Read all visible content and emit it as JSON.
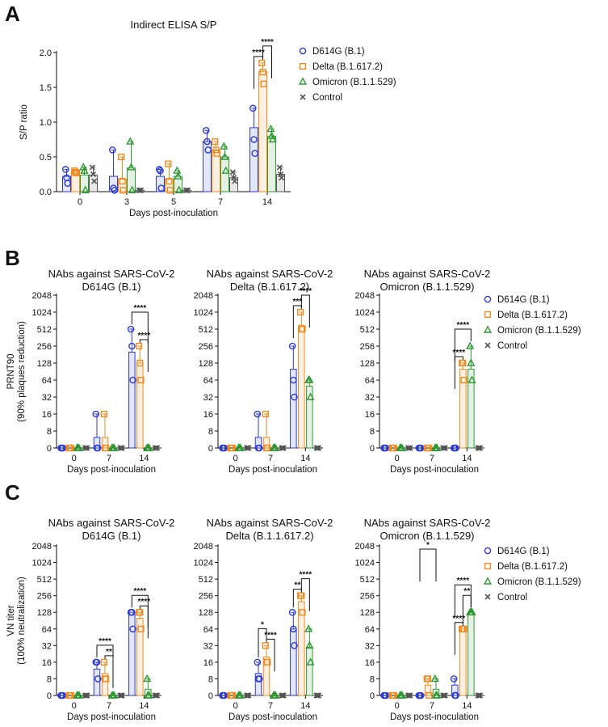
{
  "colors": {
    "D614G": "#2b3bd6",
    "Delta": "#f28a1c",
    "Omicron": "#2f9a33",
    "Control": "#555555",
    "axis": "#111111"
  },
  "series": [
    {
      "name": "D614G (B.1)",
      "key": "D614G",
      "marker": "circle"
    },
    {
      "name": "Delta (B.1.617.2)",
      "key": "Delta",
      "marker": "square"
    },
    {
      "name": "Omicron (B.1.1.529)",
      "key": "Omicron",
      "marker": "triangle"
    },
    {
      "name": "Control",
      "key": "Control",
      "marker": "cross"
    }
  ],
  "chart_data": [
    {
      "id": "A",
      "panel": "A",
      "type": "bar",
      "scale": "linear",
      "title": "Indirect ELISA S/P",
      "xlabel": "Days post-inoculation",
      "ylabel": "S/P ratio",
      "categories": [
        "0",
        "3",
        "5",
        "7",
        "14"
      ],
      "ylim": [
        0,
        2.0
      ],
      "yticks": [
        "0.0",
        "0.5",
        "1.0",
        "1.5",
        "2.0"
      ],
      "legend": [
        "D614G (B.1)",
        "Delta (B.1.617.2)",
        "Omicron (B.1.1.529)",
        "Control"
      ],
      "series": [
        {
          "name": "D614G (B.1)",
          "values": [
            0.22,
            0.22,
            0.22,
            0.72,
            0.92
          ],
          "points": [
            [
              0.32,
              0.2,
              0.12
            ],
            [
              0.6,
              0.05,
              0.02
            ],
            [
              0.32,
              0.3,
              0.05
            ],
            [
              0.88,
              0.72,
              0.6
            ],
            [
              1.2,
              0.75,
              0.55
            ]
          ]
        },
        {
          "name": "Delta (B.1.617.2)",
          "values": [
            0.29,
            0.18,
            0.18,
            0.6,
            1.73
          ],
          "points": [
            [
              0.3,
              0.28,
              0.27
            ],
            [
              0.5,
              0.15,
              0.02
            ],
            [
              0.4,
              0.15,
              0.02
            ],
            [
              0.72,
              0.6,
              0.55
            ],
            [
              1.85,
              1.72,
              1.55
            ]
          ]
        },
        {
          "name": "Omicron (B.1.1.529)",
          "values": [
            0.24,
            0.34,
            0.22,
            0.5,
            0.8
          ],
          "points": [
            [
              0.35,
              0.3,
              0.02
            ],
            [
              0.72,
              0.35,
              0.02
            ],
            [
              0.3,
              0.22,
              0.02
            ],
            [
              0.65,
              0.5,
              0.3
            ],
            [
              0.9,
              0.8,
              0.75
            ]
          ]
        },
        {
          "name": "Control",
          "values": [
            0.24,
            0.02,
            0.02,
            0.2,
            0.25
          ],
          "points": [
            [
              0.35,
              0.25,
              0.15
            ],
            [
              0.02,
              0.02,
              0.02
            ],
            [
              0.02,
              0.02,
              0.02
            ],
            [
              0.28,
              0.2,
              0.15
            ],
            [
              0.35,
              0.25,
              0.2
            ]
          ]
        }
      ],
      "brackets": [
        {
          "cat": 4,
          "from": 0,
          "to": 1,
          "label": "****",
          "level": 0
        },
        {
          "cat": 4,
          "from": 1,
          "to": 2,
          "label": "****",
          "level": 1
        }
      ]
    },
    {
      "id": "B1",
      "panel": "B",
      "type": "bar",
      "scale": "log2",
      "title": [
        "NAbs against SARS-CoV-2",
        "D614G (B.1)"
      ],
      "xlabel": "Days post-inoculation",
      "ylabel": [
        "PRNT90",
        "(90% plaques reduction)"
      ],
      "categories": [
        "0",
        "7",
        "14"
      ],
      "yticks": [
        "0",
        "8",
        "16",
        "32",
        "64",
        "128",
        "256",
        "512",
        "1024",
        "2048"
      ],
      "series": [
        {
          "name": "D614G (B.1)",
          "values": [
            0,
            5,
            200
          ],
          "points": [
            [
              0,
              0,
              0
            ],
            [
              16,
              0,
              0
            ],
            [
              512,
              256,
              64
            ]
          ]
        },
        {
          "name": "Delta (B.1.617.2)",
          "values": [
            0,
            5,
            128
          ],
          "points": [
            [
              0,
              0,
              0
            ],
            [
              16,
              0,
              0
            ],
            [
              256,
              128,
              64
            ]
          ]
        },
        {
          "name": "Omicron (B.1.1.529)",
          "values": [
            0,
            0,
            0
          ],
          "points": [
            [
              0,
              0,
              0
            ],
            [
              0,
              0,
              0
            ],
            [
              0,
              0,
              0
            ]
          ]
        },
        {
          "name": "Control",
          "values": [
            0,
            0,
            0
          ],
          "points": [
            [
              0,
              0,
              0
            ],
            [
              0,
              0,
              0
            ],
            [
              0,
              0,
              0
            ]
          ]
        }
      ],
      "brackets": [
        {
          "cat": 2,
          "from": 0,
          "to": 2,
          "label": "****",
          "level": 1
        },
        {
          "cat": 2,
          "from": 1,
          "to": 2,
          "label": "****",
          "level": 0
        }
      ]
    },
    {
      "id": "B2",
      "panel": "B",
      "type": "bar",
      "scale": "log2",
      "title": [
        "NAbs against SARS-CoV-2",
        "Delta (B.1.617.2)"
      ],
      "xlabel": "Days post-inoculation",
      "categories": [
        "0",
        "7",
        "14"
      ],
      "yticks": [
        "0",
        "8",
        "16",
        "32",
        "64",
        "128",
        "256",
        "512",
        "1024",
        "2048"
      ],
      "series": [
        {
          "name": "D614G (B.1)",
          "values": [
            0,
            5,
            100
          ],
          "points": [
            [
              0,
              0,
              0
            ],
            [
              16,
              0,
              0
            ],
            [
              256,
              64,
              32
            ]
          ]
        },
        {
          "name": "Delta (B.1.617.2)",
          "values": [
            0,
            5,
            600
          ],
          "points": [
            [
              0,
              0,
              0
            ],
            [
              16,
              0,
              0
            ],
            [
              1024,
              512,
              512
            ]
          ]
        },
        {
          "name": "Omicron (B.1.1.529)",
          "values": [
            0,
            0,
            50
          ],
          "points": [
            [
              0,
              0,
              0
            ],
            [
              0,
              0,
              0
            ],
            [
              64,
              64,
              32
            ]
          ]
        },
        {
          "name": "Control",
          "values": [
            0,
            0,
            0
          ],
          "points": [
            [
              0,
              0,
              0
            ],
            [
              0,
              0,
              0
            ],
            [
              0,
              0,
              0
            ]
          ]
        }
      ],
      "brackets": [
        {
          "cat": 2,
          "from": 0,
          "to": 1,
          "label": "***",
          "level": 0
        },
        {
          "cat": 2,
          "from": 1,
          "to": 2,
          "label": "****",
          "level": 1
        }
      ]
    },
    {
      "id": "B3",
      "panel": "B",
      "type": "bar",
      "scale": "log2",
      "title": [
        "NAbs against SARS-CoV-2",
        "Omicron (B.1.1.529)"
      ],
      "xlabel": "Days post-inoculation",
      "categories": [
        "0",
        "7",
        "14"
      ],
      "yticks": [
        "0",
        "8",
        "16",
        "32",
        "64",
        "128",
        "256",
        "512",
        "1024",
        "2048"
      ],
      "legend": [
        "D614G (B.1)",
        "Delta (B.1.617.2)",
        "Omicron (B.1.1.529)",
        "Control"
      ],
      "series": [
        {
          "name": "D614G (B.1)",
          "values": [
            0,
            0,
            0
          ],
          "points": [
            [
              0,
              0,
              0
            ],
            [
              0,
              0,
              0
            ],
            [
              0,
              0,
              0
            ]
          ]
        },
        {
          "name": "Delta (B.1.617.2)",
          "values": [
            0,
            0,
            100
          ],
          "points": [
            [
              0,
              0,
              0
            ],
            [
              0,
              0,
              0
            ],
            [
              128,
              128,
              64
            ]
          ]
        },
        {
          "name": "Omicron (B.1.1.529)",
          "values": [
            0,
            0,
            100
          ],
          "points": [
            [
              0,
              0,
              0
            ],
            [
              0,
              0,
              0
            ],
            [
              256,
              128,
              64
            ]
          ]
        },
        {
          "name": "Control",
          "values": [
            0,
            0,
            0
          ],
          "points": [
            [
              0,
              0,
              0
            ],
            [
              0,
              0,
              0
            ],
            [
              0,
              0,
              0
            ]
          ]
        }
      ],
      "brackets": [
        {
          "cat": 2,
          "from": 0,
          "to": 1,
          "label": "****",
          "level": 0
        },
        {
          "cat": 2,
          "from": 0,
          "to": 2,
          "label": "****",
          "level": 1
        }
      ]
    },
    {
      "id": "C1",
      "panel": "C",
      "type": "bar",
      "scale": "log2",
      "title": [
        "NAbs against SARS-CoV-2",
        "D614G (B.1)"
      ],
      "xlabel": "Days post-inoculation",
      "ylabel": [
        "VN titer",
        "(100% neutralization)"
      ],
      "categories": [
        "0",
        "7",
        "14"
      ],
      "yticks": [
        "0",
        "8",
        "16",
        "32",
        "64",
        "128",
        "256",
        "512",
        "1024",
        "2048"
      ],
      "series": [
        {
          "name": "D614G (B.1)",
          "values": [
            0,
            12,
            128
          ],
          "points": [
            [
              0,
              0,
              0
            ],
            [
              16,
              16,
              8
            ],
            [
              128,
              128,
              64
            ]
          ]
        },
        {
          "name": "Delta (B.1.617.2)",
          "values": [
            0,
            10,
            100
          ],
          "points": [
            [
              0,
              0,
              0
            ],
            [
              16,
              8,
              8
            ],
            [
              128,
              128,
              64
            ]
          ]
        },
        {
          "name": "Omicron (B.1.1.529)",
          "values": [
            0,
            0,
            3
          ],
          "points": [
            [
              0,
              0,
              0
            ],
            [
              0,
              0,
              0
            ],
            [
              8,
              0,
              0
            ]
          ]
        },
        {
          "name": "Control",
          "values": [
            0,
            0,
            0
          ],
          "points": [
            [
              0,
              0,
              0
            ],
            [
              0,
              0,
              0
            ],
            [
              0,
              0,
              0
            ]
          ]
        }
      ],
      "brackets": [
        {
          "cat": 1,
          "from": 0,
          "to": 2,
          "label": "****",
          "level": 1
        },
        {
          "cat": 1,
          "from": 1,
          "to": 2,
          "label": "**",
          "level": 0
        },
        {
          "cat": 2,
          "from": 0,
          "to": 2,
          "label": "****",
          "level": 1
        },
        {
          "cat": 2,
          "from": 1,
          "to": 2,
          "label": "****",
          "level": 0
        }
      ]
    },
    {
      "id": "C2",
      "panel": "C",
      "type": "bar",
      "scale": "log2",
      "title": [
        "NAbs against SARS-CoV-2",
        "Delta (B.1.1.617.2)"
      ],
      "xlabel": "Days post-inoculation",
      "categories": [
        "0",
        "7",
        "14"
      ],
      "yticks": [
        "0",
        "8",
        "16",
        "32",
        "64",
        "128",
        "256",
        "512",
        "1024",
        "2048"
      ],
      "series": [
        {
          "name": "D614G (B.1)",
          "values": [
            0,
            10,
            64
          ],
          "points": [
            [
              0,
              0,
              0
            ],
            [
              16,
              8,
              8
            ],
            [
              128,
              64,
              32
            ]
          ]
        },
        {
          "name": "Delta (B.1.617.2)",
          "values": [
            0,
            20,
            200
          ],
          "points": [
            [
              0,
              0,
              0
            ],
            [
              32,
              16,
              16
            ],
            [
              256,
              256,
              128
            ]
          ]
        },
        {
          "name": "Omicron (B.1.1.529)",
          "values": [
            0,
            0,
            30
          ],
          "points": [
            [
              0,
              0,
              0
            ],
            [
              0,
              0,
              0
            ],
            [
              64,
              32,
              16
            ]
          ]
        },
        {
          "name": "Control",
          "values": [
            0,
            0,
            0
          ],
          "points": [
            [
              0,
              0,
              0
            ],
            [
              0,
              0,
              0
            ],
            [
              0,
              0,
              0
            ]
          ]
        }
      ],
      "brackets": [
        {
          "cat": 1,
          "from": 0,
          "to": 1,
          "label": "*",
          "level": 1
        },
        {
          "cat": 1,
          "from": 1,
          "to": 2,
          "label": "****",
          "level": 0
        },
        {
          "cat": 2,
          "from": 0,
          "to": 1,
          "label": "**",
          "level": 0
        },
        {
          "cat": 2,
          "from": 1,
          "to": 2,
          "label": "****",
          "level": 1
        }
      ]
    },
    {
      "id": "C3",
      "panel": "C",
      "type": "bar",
      "scale": "log2",
      "title": [
        "NAbs against SARS-CoV-2",
        "Omicron (B.1.1.529)"
      ],
      "xlabel": "Days post-inoculation",
      "categories": [
        "0",
        "7",
        "14"
      ],
      "yticks": [
        "0",
        "8",
        "16",
        "32",
        "64",
        "128",
        "256",
        "512",
        "1024",
        "2048"
      ],
      "legend": [
        "D614G (B.1)",
        "Delta (B.1.617.2)",
        "Omicron (B.1.1.529)",
        "Control"
      ],
      "series": [
        {
          "name": "D614G (B.1)",
          "values": [
            0,
            0,
            5
          ],
          "points": [
            [
              0,
              0,
              0
            ],
            [
              0,
              0,
              0
            ],
            [
              8,
              0,
              0
            ]
          ]
        },
        {
          "name": "Delta (B.1.617.2)",
          "values": [
            0,
            5,
            64
          ],
          "points": [
            [
              0,
              0,
              0
            ],
            [
              8,
              8,
              0
            ],
            [
              64,
              64,
              64
            ]
          ]
        },
        {
          "name": "Omicron (B.1.1.529)",
          "values": [
            0,
            3,
            128
          ],
          "points": [
            [
              0,
              0,
              0
            ],
            [
              8,
              0,
              0
            ],
            [
              128,
              128,
              128
            ]
          ]
        },
        {
          "name": "Control",
          "values": [
            0,
            0,
            0
          ],
          "points": [
            [
              0,
              0,
              0
            ],
            [
              0,
              0,
              0
            ],
            [
              0,
              0,
              0
            ]
          ]
        }
      ],
      "brackets": [
        {
          "cat": 1,
          "from": 0,
          "to": 2,
          "label": "*",
          "level": 2,
          "tall": true
        },
        {
          "cat": 2,
          "from": 0,
          "to": 1,
          "label": "****",
          "level": 0
        },
        {
          "cat": 2,
          "from": 1,
          "to": 2,
          "label": "**",
          "level": 1
        },
        {
          "cat": 2,
          "from": 0,
          "to": 2,
          "label": "****",
          "level": 2
        }
      ]
    }
  ]
}
